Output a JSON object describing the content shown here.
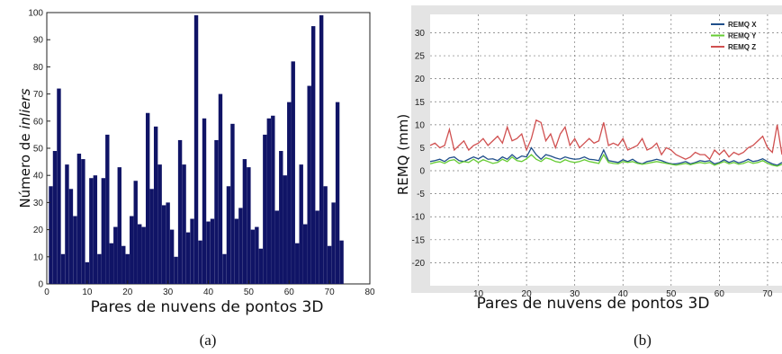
{
  "chart_data": [
    {
      "type": "bar",
      "ylabel_prefix": "Número de ",
      "ylabel_italic": "inliers",
      "xlabel": "Pares de nuvens de pontos 3D",
      "caption": "(a)",
      "xlim": [
        0,
        80
      ],
      "ylim": [
        0,
        100
      ],
      "xticks": [
        0,
        10,
        20,
        30,
        40,
        50,
        60,
        70,
        80
      ],
      "yticks": [
        0,
        10,
        20,
        30,
        40,
        50,
        60,
        70,
        80,
        90,
        100
      ],
      "bar_color": "#101466",
      "x": [
        1,
        2,
        3,
        4,
        5,
        6,
        7,
        8,
        9,
        10,
        11,
        12,
        13,
        14,
        15,
        16,
        17,
        18,
        19,
        20,
        21,
        22,
        23,
        24,
        25,
        26,
        27,
        28,
        29,
        30,
        31,
        32,
        33,
        34,
        35,
        36,
        37,
        38,
        39,
        40,
        41,
        42,
        43,
        44,
        45,
        46,
        47,
        48,
        49,
        50,
        51,
        52,
        53,
        54,
        55,
        56,
        57,
        58,
        59,
        60,
        61,
        62,
        63,
        64,
        65,
        66,
        67,
        68,
        69,
        70,
        71,
        72,
        73
      ],
      "values": [
        36,
        49,
        72,
        11,
        44,
        35,
        25,
        48,
        46,
        8,
        39,
        40,
        11,
        39,
        55,
        15,
        21,
        43,
        14,
        11,
        25,
        38,
        22,
        21,
        63,
        35,
        58,
        44,
        29,
        30,
        20,
        10,
        53,
        44,
        19,
        24,
        99,
        16,
        61,
        23,
        24,
        53,
        70,
        11,
        36,
        59,
        24,
        28,
        46,
        43,
        20,
        21,
        13,
        55,
        61,
        62,
        27,
        49,
        40,
        67,
        82,
        15,
        44,
        22,
        73,
        95,
        27,
        99,
        36,
        14,
        30,
        67,
        16
      ]
    },
    {
      "type": "line",
      "ylabel": "REMQ (mm)",
      "xlabel": "Pares de nuvens de pontos 3D",
      "caption": "(b)",
      "xlim": [
        0,
        73
      ],
      "ylim": [
        -25,
        34
      ],
      "xticks": [
        10,
        20,
        30,
        40,
        50,
        60,
        70
      ],
      "yticks": [
        30,
        25,
        20,
        15,
        10,
        5,
        0,
        -5,
        -10,
        -15,
        -20
      ],
      "grid": true,
      "legend_position": "top-right",
      "x": [
        0,
        1,
        2,
        3,
        4,
        5,
        6,
        7,
        8,
        9,
        10,
        11,
        12,
        13,
        14,
        15,
        16,
        17,
        18,
        19,
        20,
        21,
        22,
        23,
        24,
        25,
        26,
        27,
        28,
        29,
        30,
        31,
        32,
        33,
        34,
        35,
        36,
        37,
        38,
        39,
        40,
        41,
        42,
        43,
        44,
        45,
        46,
        47,
        48,
        49,
        50,
        51,
        52,
        53,
        54,
        55,
        56,
        57,
        58,
        59,
        60,
        61,
        62,
        63,
        64,
        65,
        66,
        67,
        68,
        69,
        70,
        71,
        72,
        73
      ],
      "series": [
        {
          "name": "REMQ X",
          "color": "#1f4e8a",
          "values": [
            2,
            2.2,
            2.5,
            2,
            2.8,
            3,
            2.2,
            2,
            2.5,
            3,
            2.6,
            3.2,
            2.5,
            2.6,
            2.2,
            3,
            2.5,
            3.5,
            2.6,
            3.2,
            3,
            5,
            3.5,
            2.5,
            3.5,
            3.2,
            2.8,
            2.5,
            3,
            2.7,
            2.5,
            2.6,
            3,
            2.5,
            2.4,
            2.2,
            4.5,
            2.2,
            2,
            1.8,
            2.4,
            2,
            2.5,
            1.8,
            1.5,
            2,
            2.2,
            2.5,
            2.2,
            1.8,
            1.5,
            1.5,
            1.7,
            2,
            1.5,
            1.8,
            2.2,
            2,
            2.2,
            1.5,
            1.8,
            2.4,
            1.8,
            2.2,
            1.7,
            2,
            2.5,
            2,
            2.2,
            2.6,
            2,
            1.5,
            1.2,
            1.8
          ]
        },
        {
          "name": "REMQ Y",
          "color": "#66cc33",
          "values": [
            1.5,
            1.8,
            2,
            1.6,
            2.2,
            2.4,
            1.6,
            2,
            1.8,
            2.5,
            1.8,
            2.4,
            2,
            1.6,
            1.8,
            2.5,
            2,
            3,
            2.2,
            2,
            2.6,
            3.5,
            2.5,
            2,
            2.8,
            2.5,
            2,
            1.8,
            2.4,
            2,
            1.8,
            2,
            2.4,
            2,
            1.8,
            1.6,
            3.5,
            1.8,
            1.6,
            1.5,
            2,
            1.8,
            2,
            1.6,
            1.4,
            1.6,
            1.8,
            2,
            1.8,
            1.6,
            1.4,
            1.2,
            1.4,
            1.6,
            1.3,
            1.6,
            1.8,
            1.6,
            1.8,
            1.2,
            1.6,
            2,
            1.5,
            1.8,
            1.4,
            1.6,
            2,
            1.6,
            1.8,
            2.2,
            1.6,
            1.2,
            1,
            1.4
          ]
        },
        {
          "name": "REMQ Z",
          "color": "#d05050",
          "values": [
            5.5,
            6,
            5,
            5.5,
            9,
            4.5,
            5.5,
            6.5,
            4.5,
            5.5,
            6,
            7,
            5.5,
            6.5,
            7.5,
            6,
            9.5,
            6.5,
            7,
            8,
            4.5,
            7,
            11,
            10.5,
            6.5,
            8,
            5,
            8,
            9.5,
            5.5,
            7,
            5,
            6,
            7,
            6,
            6.5,
            10.5,
            5.5,
            6,
            5.5,
            7,
            4.5,
            5,
            5.5,
            7,
            4.5,
            5,
            6,
            3.5,
            5,
            4.5,
            3.5,
            3,
            2.5,
            3,
            4,
            3.5,
            3.5,
            2.5,
            4.5,
            3.5,
            4.5,
            3,
            4,
            3.5,
            4,
            5,
            5.5,
            6.5,
            7.5,
            5,
            4,
            10,
            3.5
          ]
        }
      ]
    }
  ]
}
